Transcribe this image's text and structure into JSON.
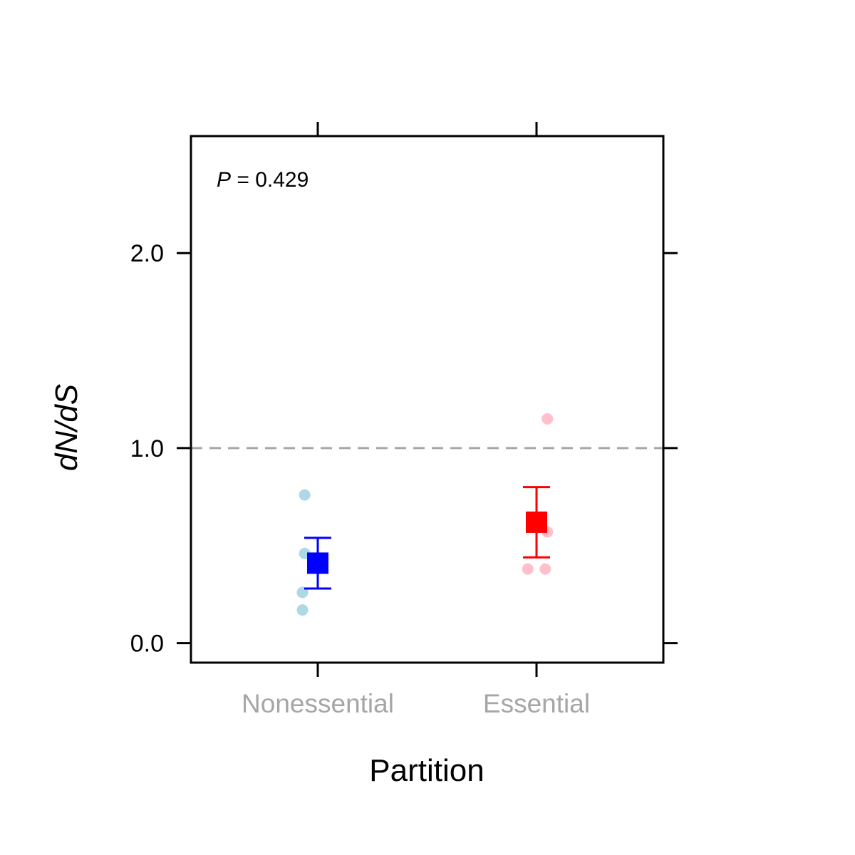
{
  "chart_data": {
    "type": "scatter",
    "title": "",
    "xlabel": "Partition",
    "ylabel_italic_part": "dN/dS",
    "categories": [
      "Nonessential",
      "Essential"
    ],
    "ylim": [
      -0.1,
      2.6
    ],
    "yticks": [
      0.0,
      1.0,
      2.0
    ],
    "ytick_labels": [
      "0.0",
      "1.0",
      "2.0"
    ],
    "reference_line": {
      "y": 1.0,
      "style": "dashed",
      "color": "#a6a6a6"
    },
    "annotation": {
      "italic": "P",
      "text": " = 0.429"
    },
    "grid": false,
    "legend": "none",
    "series": [
      {
        "category": "Nonessential",
        "points": [
          {
            "dx": -0.06,
            "y": 0.76
          },
          {
            "dx": -0.06,
            "y": 0.46
          },
          {
            "dx": -0.07,
            "y": 0.26
          },
          {
            "dx": -0.07,
            "y": 0.17
          }
        ],
        "mean": 0.41,
        "ci_low": 0.28,
        "ci_high": 0.54,
        "point_color": "#add8e6",
        "mean_color": "#0000ff"
      },
      {
        "category": "Essential",
        "points": [
          {
            "dx": 0.05,
            "y": 1.15
          },
          {
            "dx": 0.05,
            "y": 0.57
          },
          {
            "dx": -0.04,
            "y": 0.38
          },
          {
            "dx": 0.04,
            "y": 0.38
          }
        ],
        "mean": 0.62,
        "ci_low": 0.44,
        "ci_high": 0.8,
        "point_color": "#ffc0cb",
        "mean_color": "#ff0000"
      }
    ]
  }
}
